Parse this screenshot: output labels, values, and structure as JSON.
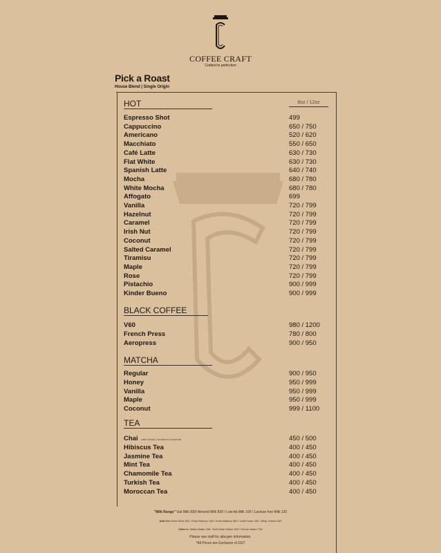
{
  "brand": {
    "name": "COFFEE CRAFT",
    "tagline": "Crafted to perfection"
  },
  "menu": {
    "title": "Pick a Roast",
    "subtitle": "House Blend | Single Origin",
    "size_header": "8oz / 12oz"
  },
  "sections": [
    {
      "name": "HOT",
      "items": [
        {
          "name": "Espresso Shot",
          "price": "499"
        },
        {
          "name": "Cappuccino",
          "price": "650 / 750"
        },
        {
          "name": "Americano",
          "price": "520 / 620"
        },
        {
          "name": "Macchiato",
          "price": "550 / 650"
        },
        {
          "name": "Café Latte",
          "price": "630 / 730"
        },
        {
          "name": "Flat White",
          "price": "630 / 730"
        },
        {
          "name": "Spanish Latte",
          "price": "640 / 740"
        },
        {
          "name": "Mocha",
          "price": "680 / 780"
        },
        {
          "name": "White Mocha",
          "price": "680 / 780"
        },
        {
          "name": "Affogato",
          "price": "699"
        },
        {
          "name": "Vanilla",
          "price": "720 / 799"
        },
        {
          "name": "Hazelnut",
          "price": "720 / 799"
        },
        {
          "name": "Caramel",
          "price": "720 / 799"
        },
        {
          "name": "Irish Nut",
          "price": "720 / 799"
        },
        {
          "name": "Coconut",
          "price": "720 / 799"
        },
        {
          "name": "Salted Caramel",
          "price": "720 / 799"
        },
        {
          "name": "Tiramisu",
          "price": "720 / 799"
        },
        {
          "name": "Maple",
          "price": "720 / 799"
        },
        {
          "name": "Rose",
          "price": "720 / 799"
        },
        {
          "name": "Pistachio",
          "price": "900 / 999"
        },
        {
          "name": "Kinder Bueno",
          "price": "900 / 999"
        }
      ]
    },
    {
      "name": "BLACK COFFEE",
      "items": [
        {
          "name": "V60",
          "price": "980 / 1200"
        },
        {
          "name": "French Press",
          "price": "780 / 800"
        },
        {
          "name": "Aeropress",
          "price": "900 / 950"
        }
      ]
    },
    {
      "name": "MATCHA",
      "items": [
        {
          "name": "Regular",
          "price": "900 / 950"
        },
        {
          "name": "Honey",
          "price": "950 / 999"
        },
        {
          "name": "Vanilla",
          "price": "950 / 999"
        },
        {
          "name": "Maple",
          "price": "950 / 999"
        },
        {
          "name": "Coconut",
          "price": "999 / 1100"
        }
      ]
    },
    {
      "name": "TEA",
      "items": [
        {
          "name": "Chai",
          "note": "Latte,Karak,Cardamom,Separate",
          "price": "450 / 500"
        },
        {
          "name": "Hibiscus Tea",
          "price": "400 / 450"
        },
        {
          "name": "Jasmine Tea",
          "price": "400 / 450"
        },
        {
          "name": "Mint Tea",
          "price": "400 / 450"
        },
        {
          "name": "Chamomile Tea",
          "price": "400 / 450"
        },
        {
          "name": "Turkish Tea",
          "price": "400 / 450"
        },
        {
          "name": "Moroccan Tea",
          "price": "400 / 450"
        }
      ]
    }
  ],
  "footer": {
    "milk_label": "\"Milk Range\"",
    "milk": "Oat Milk 830/ Almond Milk 830 / Low-fat Milk 100 / Lactose free Milk 120",
    "addon_label": "Add On:",
    "addon": "Extra Shot 300 / Extra Flavour 150 / Extra Matcha 300 / Cold Foam 200 / Whip Cream 200",
    "others_label": "Other's:",
    "others": "Water Bottle 150 / Soft Drink 250ml 250 / Perrier Water 750",
    "allergen": "Please see staff for allergen information.",
    "gst": "*All Prices are Exclusive of GST"
  },
  "colors": {
    "background": "#dac09c",
    "ink": "#1e1712"
  }
}
